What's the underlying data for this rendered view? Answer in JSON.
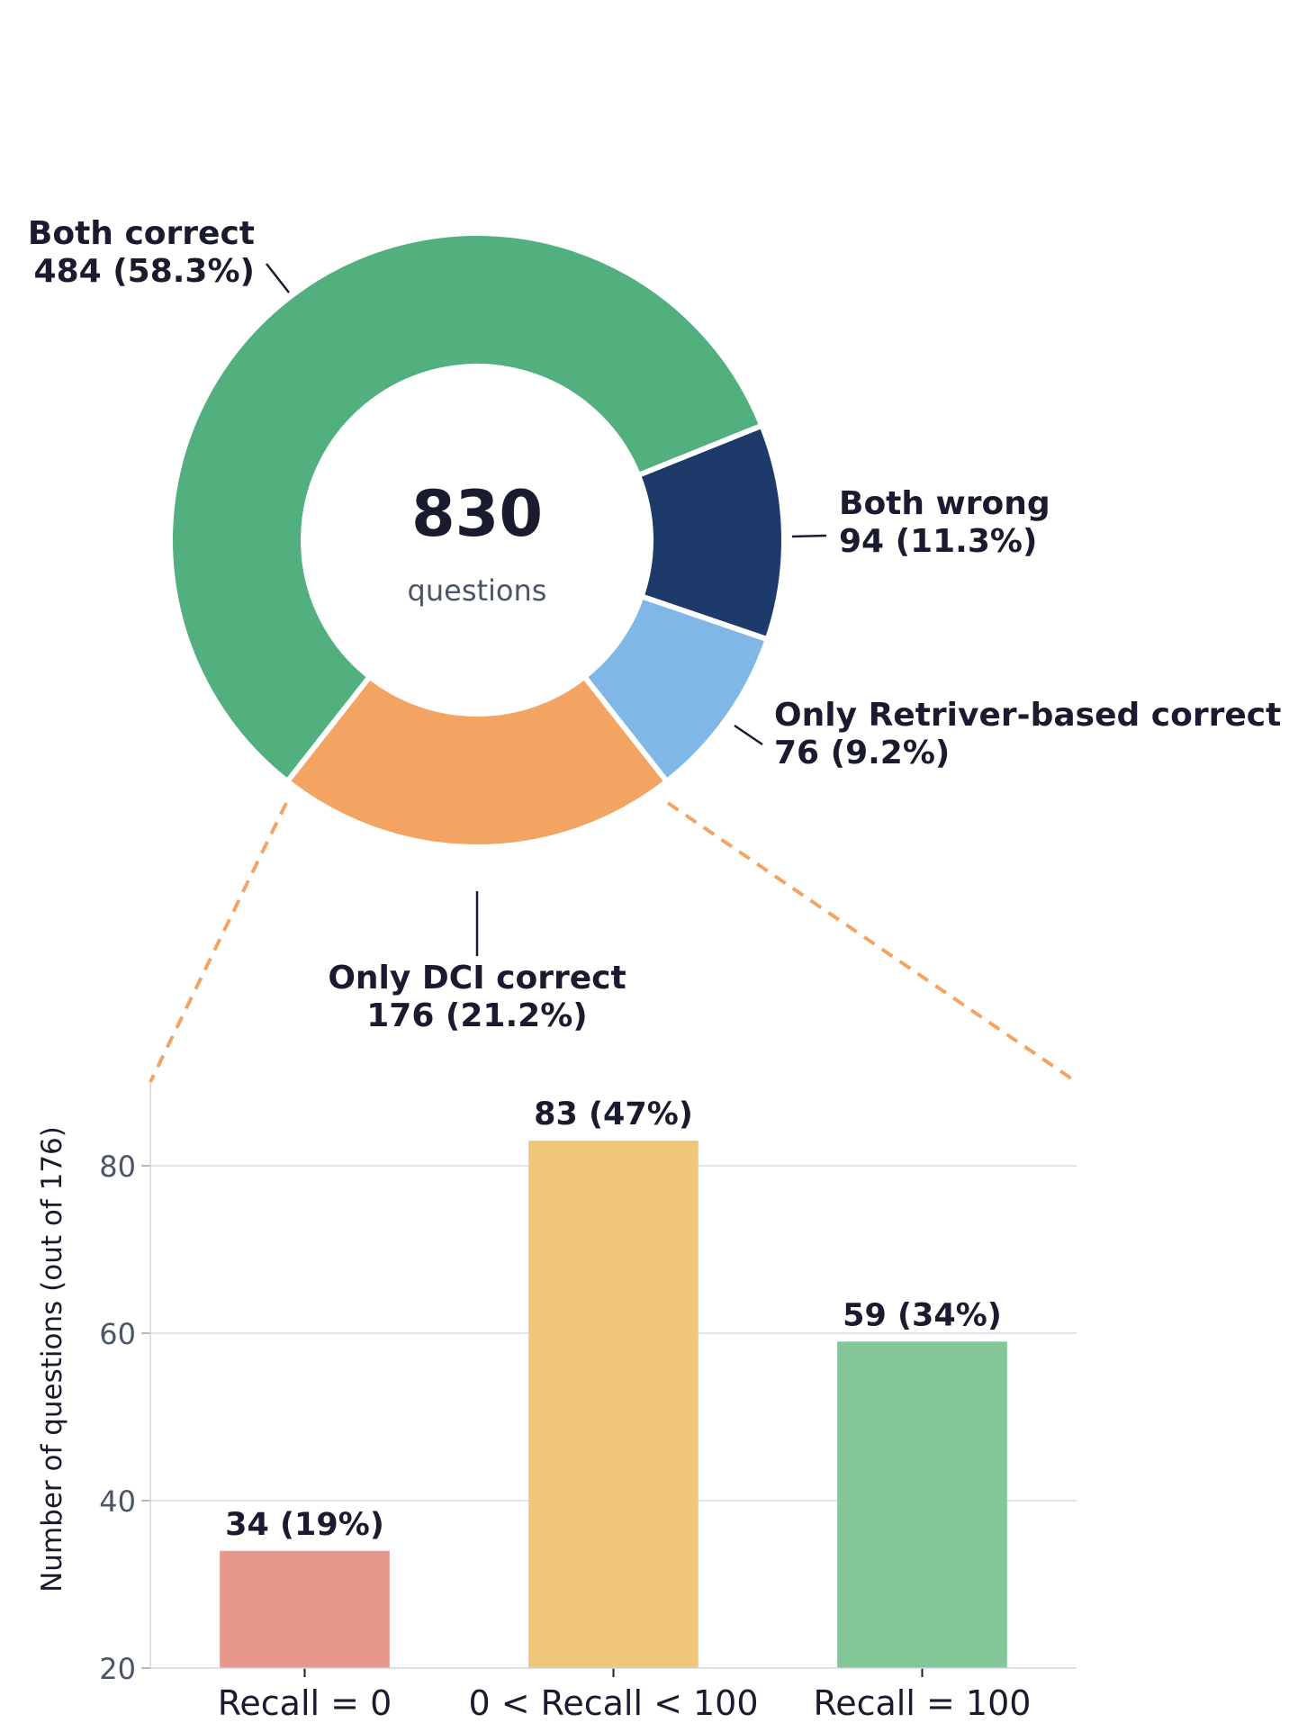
{
  "chart_data": [
    {
      "type": "pie",
      "center_value": "830",
      "center_caption": "questions",
      "slices": [
        {
          "name": "Both correct",
          "value": 484,
          "label": "484 (58.3%)",
          "color": "#52b07f"
        },
        {
          "name": "Both wrong",
          "value": 94,
          "label": "94 (11.3%)",
          "color": "#1d3a6b"
        },
        {
          "name": "Only Retriver-based correct",
          "value": 76,
          "label": "76 (9.2%)",
          "color": "#7fb8e6"
        },
        {
          "name": "Only DCI correct",
          "value": 176,
          "label": "176 (21.2%)",
          "color": "#f3a462"
        }
      ],
      "connector_color": "#f3a462"
    },
    {
      "type": "bar",
      "ylabel": "Number of questions (out of 176)",
      "ylim": [
        20,
        90
      ],
      "yticks": [
        "20",
        "40",
        "60",
        "80"
      ],
      "categories": [
        "Recall = 0",
        "0 < Recall < 100",
        "Recall = 100"
      ],
      "values": [
        34,
        83,
        59
      ],
      "bar_labels": [
        "34  (19%)",
        "83  (47%)",
        "59  (34%)"
      ],
      "colors": [
        "#e8978c",
        "#f0c678",
        "#83c697"
      ],
      "grid": true
    }
  ]
}
